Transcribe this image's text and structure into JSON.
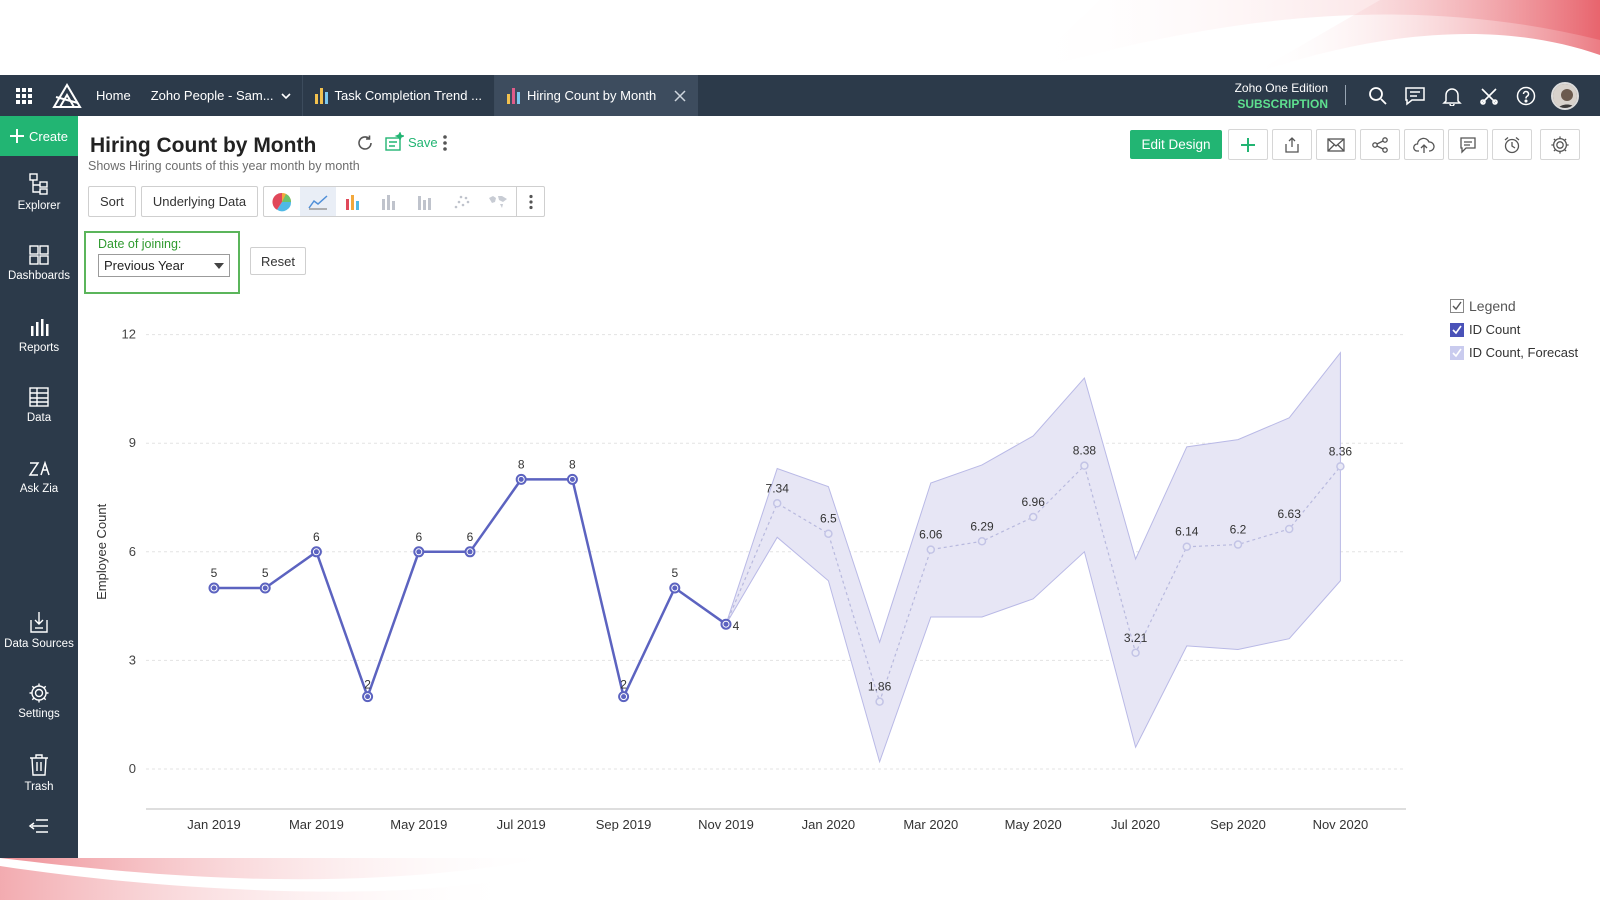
{
  "header": {
    "home": "Home",
    "workspace": "Zoho People - Sam...",
    "tabs": [
      {
        "label": "Task Completion Trend ..."
      },
      {
        "label": "Hiring Count by Month"
      }
    ],
    "edition": "Zoho One Edition",
    "subscription": "SUBSCRIPTION"
  },
  "sidebar": {
    "create": "Create",
    "items": [
      {
        "label": "Explorer"
      },
      {
        "label": "Dashboards"
      },
      {
        "label": "Reports"
      },
      {
        "label": "Data"
      },
      {
        "label": "Ask Zia"
      },
      {
        "label": "Data Sources"
      },
      {
        "label": "Settings"
      },
      {
        "label": "Trash"
      }
    ]
  },
  "report": {
    "title": "Hiring Count by Month",
    "subtitle": "Shows Hiring counts of this year month by month",
    "save": "Save",
    "edit_design": "Edit Design"
  },
  "toolbar": {
    "sort": "Sort",
    "underlying_data": "Underlying Data"
  },
  "filter": {
    "label": "Date of joining:",
    "value": "Previous Year",
    "reset": "Reset"
  },
  "colors": {
    "accent": "#22b573",
    "series": "#5c63c0",
    "forecast_band": "#e7e6f5",
    "nav": "#2c3a4a"
  },
  "chart_data": {
    "type": "line",
    "ylabel": "Employee Count",
    "ylim": [
      0,
      12
    ],
    "yticks": [
      0,
      3,
      6,
      9,
      12
    ],
    "xticks": [
      "Jan 2019",
      "Mar 2019",
      "May 2019",
      "Jul 2019",
      "Sep 2019",
      "Nov 2019",
      "Jan 2020",
      "Mar 2020",
      "May 2020",
      "Jul 2020",
      "Sep 2020",
      "Nov 2020"
    ],
    "months": [
      "Jan 2019",
      "Feb 2019",
      "Mar 2019",
      "Apr 2019",
      "May 2019",
      "Jun 2019",
      "Jul 2019",
      "Aug 2019",
      "Sep 2019",
      "Oct 2019",
      "Nov 2019",
      "Dec 2019",
      "Jan 2020",
      "Feb 2020",
      "Mar 2020",
      "Apr 2020",
      "May 2020",
      "Jun 2020",
      "Jul 2020",
      "Aug 2020",
      "Sep 2020",
      "Oct 2020",
      "Nov 2020"
    ],
    "series": [
      {
        "name": "ID Count",
        "start": 0,
        "values": [
          5,
          5,
          6,
          2,
          6,
          6,
          8,
          8,
          2,
          5,
          4
        ]
      },
      {
        "name": "ID Count, Forecast",
        "start": 11,
        "values": [
          7.34,
          6.5,
          1.86,
          6.06,
          6.29,
          6.96,
          8.38,
          3.21,
          6.14,
          6.2,
          6.63,
          8.36
        ],
        "upper": [
          8.3,
          7.8,
          3.5,
          7.9,
          8.4,
          9.2,
          10.8,
          5.8,
          8.9,
          9.1,
          9.7,
          11.5
        ],
        "lower": [
          6.4,
          5.2,
          0.2,
          4.2,
          4.2,
          4.7,
          6.0,
          0.6,
          3.4,
          3.3,
          3.6,
          5.2
        ]
      }
    ],
    "legend": {
      "title": "Legend",
      "position": "top-right"
    },
    "grid": true
  }
}
